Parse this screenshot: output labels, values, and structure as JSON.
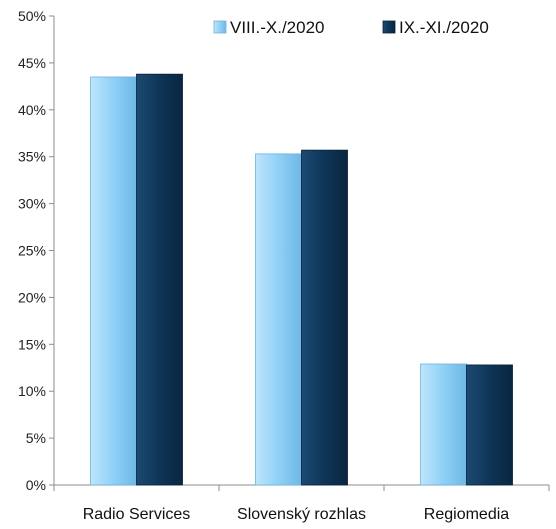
{
  "chart_data": {
    "type": "bar",
    "categories": [
      "Radio Services",
      "Slovenský rozhlas",
      "Regiomedia"
    ],
    "series": [
      {
        "name": "VIII.-X./2020",
        "values": [
          43.5,
          35.3,
          12.9
        ],
        "color": "#8fd0f7"
      },
      {
        "name": "IX.-XI./2020",
        "values": [
          43.8,
          35.7,
          12.8
        ],
        "color": "#0e3558"
      }
    ],
    "ylim": [
      0,
      50
    ],
    "yticks": [
      "0%",
      "5%",
      "10%",
      "15%",
      "20%",
      "25%",
      "30%",
      "35%",
      "40%",
      "45%",
      "50%"
    ],
    "grid": false,
    "legend_position": "top-right"
  }
}
